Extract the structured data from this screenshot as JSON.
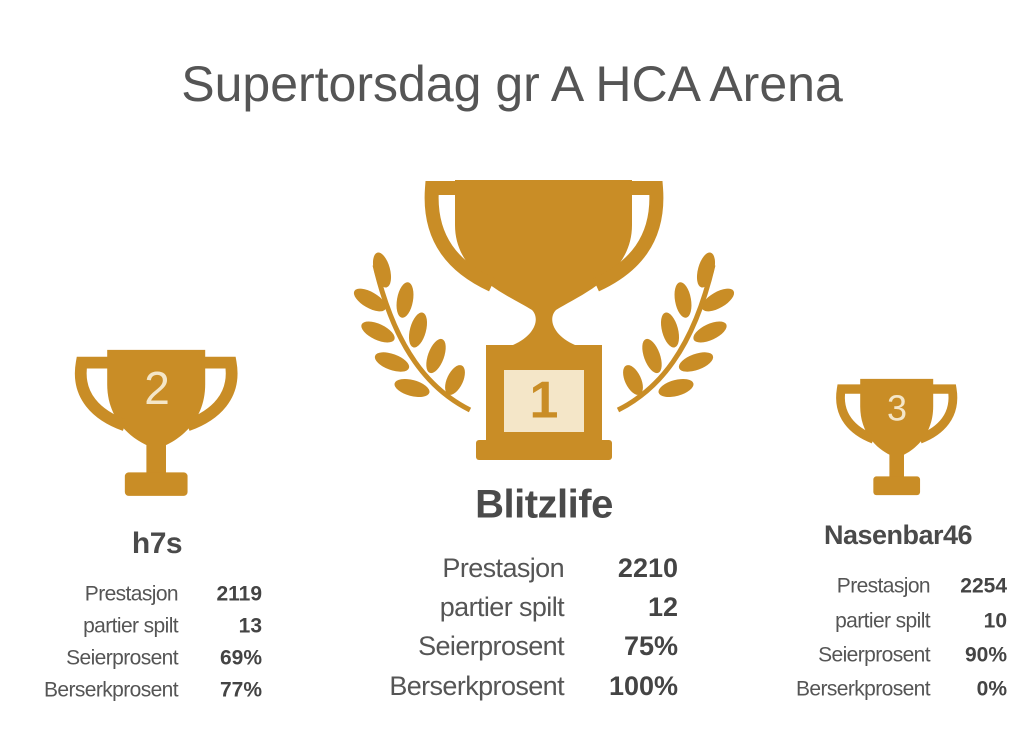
{
  "header": {
    "title": "Supertorsdag gr A HCA Arena"
  },
  "podium": [
    {
      "rank": "2",
      "name": "h7s",
      "stats": [
        [
          "Prestasjon",
          "2119"
        ],
        [
          "partier spilt",
          "13"
        ],
        [
          "Seierprosent",
          "69%"
        ],
        [
          "Berserkprosent",
          "77%"
        ]
      ]
    },
    {
      "rank": "1",
      "name": "Blitzlife",
      "stats": [
        [
          "Prestasjon",
          "2210"
        ],
        [
          "partier spilt",
          "12"
        ],
        [
          "Seierprosent",
          "75%"
        ],
        [
          "Berserkprosent",
          "100%"
        ]
      ]
    },
    {
      "rank": "3",
      "name": "Nasenbar46",
      "stats": [
        [
          "Prestasjon",
          "2254"
        ],
        [
          "partier spilt",
          "10"
        ],
        [
          "Seierprosent",
          "90%"
        ],
        [
          "Berserkprosent",
          "0%"
        ]
      ]
    }
  ]
}
